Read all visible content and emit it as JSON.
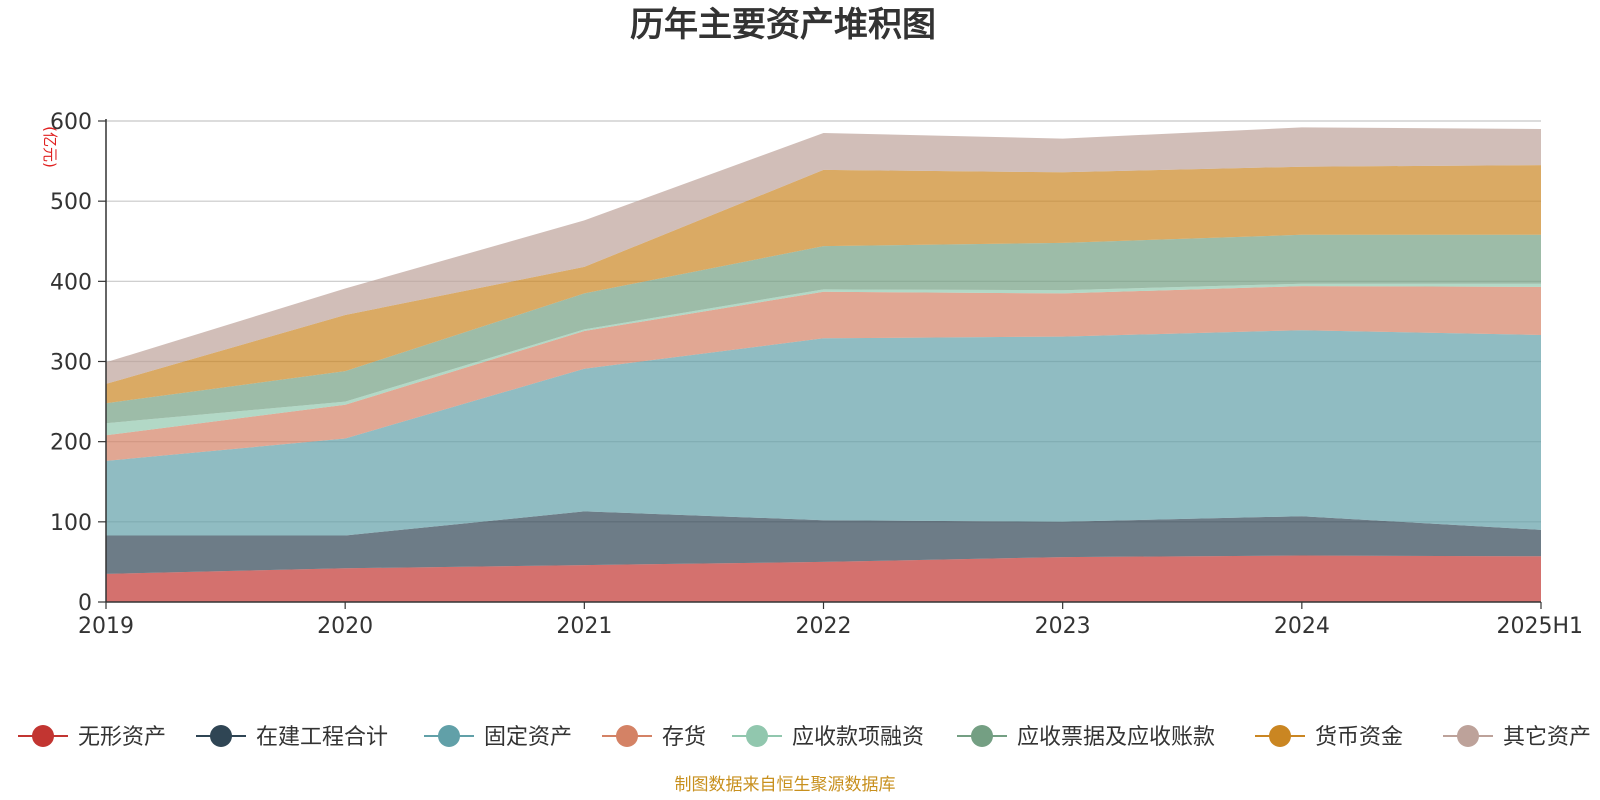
{
  "chart_data": {
    "type": "area",
    "stacked": true,
    "title": "历年主要资产堆积图",
    "unit": "(亿元)",
    "categories": [
      "2019",
      "2020",
      "2021",
      "2022",
      "2023",
      "2024",
      "2025H1"
    ],
    "ylim": [
      0,
      600
    ],
    "yticks": [
      0,
      100,
      200,
      300,
      400,
      500,
      600
    ],
    "grid": true,
    "legend_position": "bottom",
    "series": [
      {
        "name": "无形资产",
        "color": "#c23531",
        "values": [
          35,
          42,
          46,
          50,
          56,
          58,
          57
        ]
      },
      {
        "name": "在建工程合计",
        "color": "#2f4554",
        "values": [
          48,
          41,
          67,
          52,
          44,
          49,
          33
        ]
      },
      {
        "name": "固定资产",
        "color": "#61a0a8",
        "values": [
          93,
          121,
          178,
          227,
          231,
          232,
          243
        ]
      },
      {
        "name": "存货",
        "color": "#d48265",
        "values": [
          32,
          42,
          47,
          58,
          54,
          55,
          60
        ]
      },
      {
        "name": "应收款项融资",
        "color": "#91c7ae",
        "values": [
          15,
          4,
          2,
          3,
          4,
          3,
          4
        ]
      },
      {
        "name": "应收票据及应收账款",
        "color": "#749f83",
        "values": [
          25,
          38,
          45,
          54,
          59,
          61,
          61
        ]
      },
      {
        "name": "货币资金",
        "color": "#ca8622",
        "values": [
          24,
          70,
          33,
          95,
          88,
          85,
          87
        ]
      },
      {
        "name": "其它资产",
        "color": "#bda29a",
        "values": [
          27,
          33,
          58,
          46,
          42,
          49,
          45
        ]
      }
    ]
  },
  "source_note": "制图数据来自恒生聚源数据库"
}
